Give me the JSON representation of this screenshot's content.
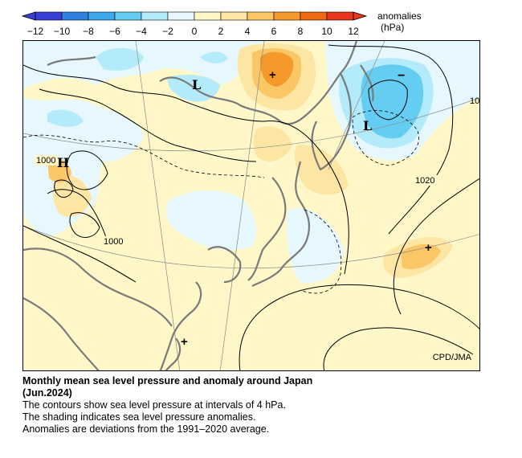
{
  "legend": {
    "title": "anomalies",
    "unit": "(hPa)",
    "ticks": [
      "−12",
      "−10",
      "−8",
      "−6",
      "−4",
      "−2",
      "0",
      "2",
      "4",
      "6",
      "8",
      "10",
      "12"
    ],
    "colors": [
      "#3b3fd6",
      "#2f80e0",
      "#3ba8ec",
      "#66cdf2",
      "#b4ebfb",
      "#e6f8fd",
      "#fff7c8",
      "#fde6a3",
      "#fbc766",
      "#f59a2a",
      "#f06a14",
      "#e8351c"
    ]
  },
  "map": {
    "credit": "CPD/JMA",
    "labels": {
      "h": "H",
      "l_west": "L",
      "l_east": "L",
      "minus": "−",
      "plus_north": "+",
      "plus_east": "+",
      "plus_south": "+"
    },
    "contour_labels": [
      "1000",
      "1000",
      "1020",
      "10"
    ]
  },
  "caption": {
    "title_line1": "Monthly mean sea level pressure and anomaly around Japan",
    "title_line2": "(Jun.2024)",
    "line3": "The contours show sea level pressure at intervals of 4 hPa.",
    "line4": "The shading indicates sea level pressure anomalies.",
    "line5": "Anomalies are deviations from the 1991–2020 average."
  }
}
